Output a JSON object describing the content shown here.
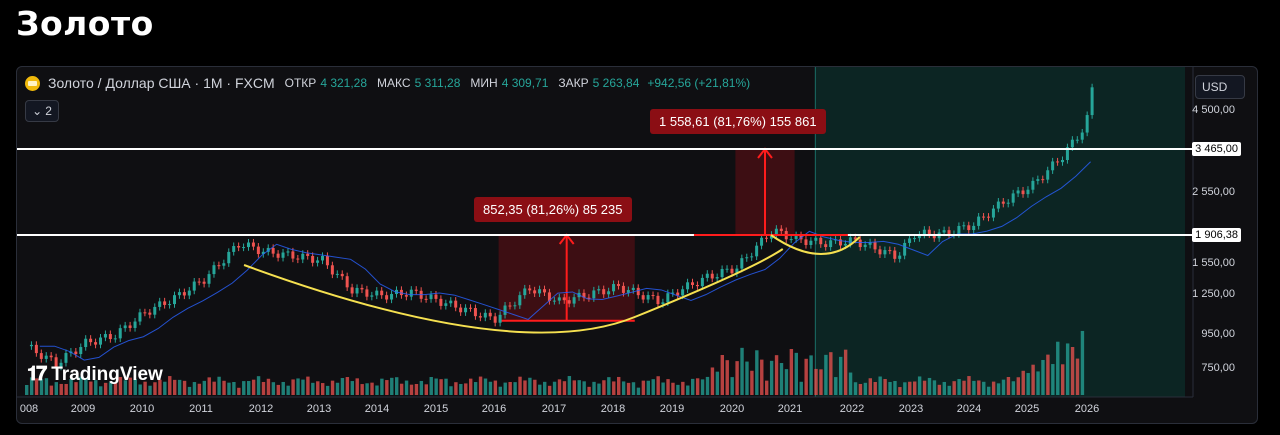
{
  "page_title": "Золото",
  "legend": {
    "symbol": "Золото / Доллар США · 1M · FXCM",
    "open_label": "ОТКР",
    "open_value": "4 321,28",
    "high_label": "МАКС",
    "high_value": "5 311,28",
    "low_label": "МИН",
    "low_value": "4 309,71",
    "close_label": "ЗАКР",
    "close_value": "5 263,84",
    "change": "+942,56 (+21,81%)",
    "indicators_count": "2"
  },
  "currency": "USD",
  "brand": "TradingView",
  "colors": {
    "up": "#26a69a",
    "down": "#ef5350",
    "annotation": "#8b0e14",
    "arc": "#f5e050",
    "ma": "#2962ff",
    "level": "#ffffff"
  },
  "chart_data": {
    "type": "candlestick",
    "x_ticks": [
      "008",
      "2009",
      "2010",
      "2011",
      "2012",
      "2013",
      "2014",
      "2015",
      "2016",
      "2017",
      "2018",
      "2019",
      "2020",
      "2021",
      "2022",
      "2023",
      "2024",
      "2025",
      "2026"
    ],
    "y_ticks": [
      "4 500,00",
      "2 550,00",
      "1 550,00",
      "1 250,00",
      "950,00",
      "750,00"
    ],
    "price_tags": [
      "3 465,00",
      "1 906,38"
    ],
    "levels": [
      3465,
      1906.38
    ],
    "log_scale": true,
    "annotations": [
      {
        "text": "852,35 (81,26%) 85 235",
        "from_year": 2016.0,
        "to_year": 2018.3,
        "low": 1050,
        "high": 1906
      },
      {
        "text": "1 558,61 (81,76%) 155 861",
        "from_year": 2020.0,
        "to_year": 2021.0,
        "low": 1906,
        "high": 3465
      }
    ],
    "series": [
      {
        "name": "",
        "points": [
          [
            2008.0,
            880
          ],
          [
            2008.5,
            780
          ],
          [
            2009.0,
            900
          ],
          [
            2009.5,
            950
          ],
          [
            2010.0,
            1110
          ],
          [
            2010.5,
            1230
          ],
          [
            2011.0,
            1400
          ],
          [
            2011.6,
            1800
          ],
          [
            2012.0,
            1700
          ],
          [
            2012.5,
            1650
          ],
          [
            2013.0,
            1600
          ],
          [
            2013.5,
            1300
          ],
          [
            2014.0,
            1250
          ],
          [
            2014.5,
            1280
          ],
          [
            2015.0,
            1200
          ],
          [
            2015.9,
            1060
          ],
          [
            2016.5,
            1320
          ],
          [
            2017.0,
            1200
          ],
          [
            2017.5,
            1260
          ],
          [
            2018.0,
            1330
          ],
          [
            2018.7,
            1200
          ],
          [
            2019.0,
            1290
          ],
          [
            2019.5,
            1420
          ],
          [
            2020.0,
            1520
          ],
          [
            2020.6,
            1970
          ],
          [
            2021.0,
            1850
          ],
          [
            2021.5,
            1800
          ],
          [
            2022.0,
            1830
          ],
          [
            2022.7,
            1640
          ],
          [
            2023.0,
            1920
          ],
          [
            2023.5,
            1920
          ],
          [
            2024.0,
            2050
          ],
          [
            2024.5,
            2400
          ],
          [
            2025.0,
            2700
          ],
          [
            2025.5,
            3300
          ],
          [
            2025.9,
            4100
          ],
          [
            2026.0,
            5263
          ]
        ]
      }
    ]
  }
}
